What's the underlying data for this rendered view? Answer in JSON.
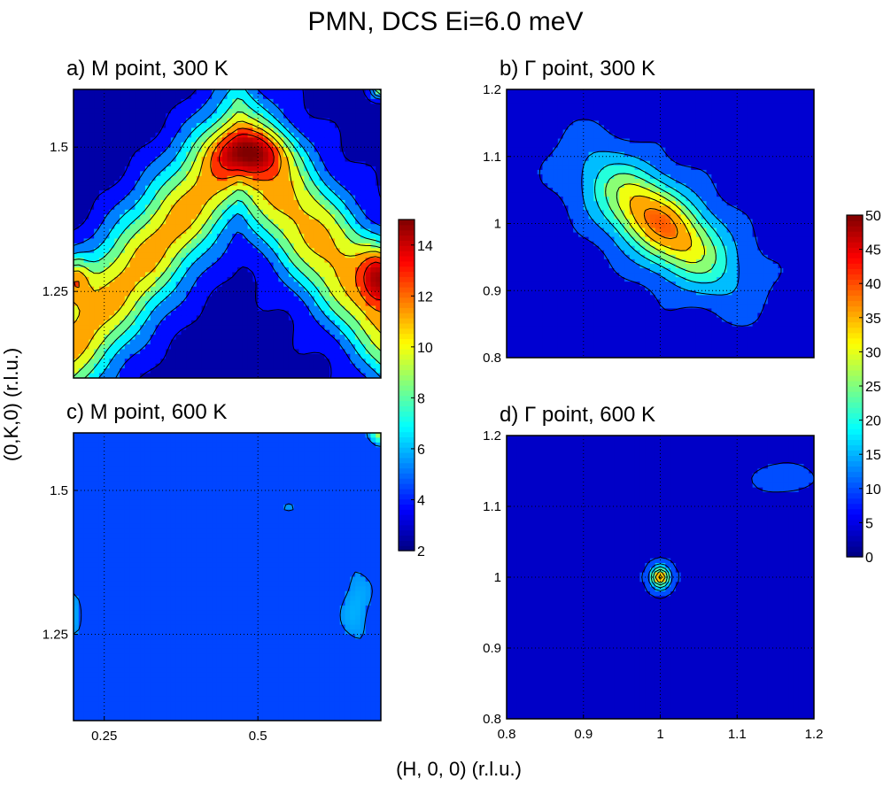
{
  "figure": {
    "title": "PMN, DCS Ei=6.0 meV",
    "xlabel": "(H, 0, 0) (r.l.u.)",
    "ylabel": "(0,K,0) (r.l.u.)"
  },
  "colors": {
    "colormap": "jet",
    "contour_line": "#000000",
    "axes": "#000000",
    "grid": "#000000"
  },
  "chart_data": [
    {
      "id": "a",
      "type": "heatmap",
      "title": "a) M point, 300 K",
      "xlim": [
        0.2,
        0.7
      ],
      "ylim": [
        1.1,
        1.6
      ],
      "xticks": [],
      "yticks": [
        1.25,
        1.5
      ],
      "grid": true,
      "colorbar": "left",
      "levels": [
        3,
        4.5,
        6,
        7.5,
        9,
        10.5,
        12,
        13.5
      ],
      "peaks": [
        {
          "x": 0.49,
          "y": 1.49,
          "value": 13.5,
          "sx": 0.06,
          "sy": 0.04
        },
        {
          "x": 0.7,
          "y": 1.28,
          "value": 14.5,
          "sx": 0.03,
          "sy": 0.05
        },
        {
          "x": 0.2,
          "y": 1.27,
          "value": 12.5,
          "sx": 0.025,
          "sy": 0.04
        },
        {
          "x": 0.7,
          "y": 1.6,
          "value": 15,
          "sx": 0.015,
          "sy": 0.015
        }
      ],
      "ridge": {
        "base": 2.5,
        "height": 8.5,
        "apex_x": 0.47,
        "apex_y": 1.5,
        "slope": 1.25,
        "width": 0.12
      }
    },
    {
      "id": "b",
      "type": "heatmap",
      "title": "b) Γ point, 300 K",
      "xlim": [
        0.8,
        1.2
      ],
      "ylim": [
        0.8,
        1.2
      ],
      "xticks": [],
      "yticks": [
        0.8,
        0.9,
        1,
        1.1,
        1.2
      ],
      "grid": true,
      "colorbar": "right",
      "levels": [
        8,
        13,
        18,
        23,
        28,
        33,
        38
      ],
      "peaks": [
        {
          "x": 1.0,
          "y": 1.0,
          "value": 40,
          "along": 0.11,
          "across": 0.05
        }
      ],
      "background": 6
    },
    {
      "id": "c",
      "type": "heatmap",
      "title": "c) M point, 600 K",
      "xlim": [
        0.2,
        0.7
      ],
      "ylim": [
        1.1,
        1.6
      ],
      "xticks": [
        0.25,
        0.5
      ],
      "yticks": [
        1.25,
        1.5
      ],
      "grid": true,
      "colorbar": "left",
      "levels": [
        3.5,
        5.5
      ],
      "peaks": [
        {
          "x": 0.7,
          "y": 1.6,
          "value": 15,
          "sx": 0.015,
          "sy": 0.015
        },
        {
          "x": 0.66,
          "y": 1.3,
          "value": 6.2,
          "sx": 0.03,
          "sy": 0.08
        },
        {
          "x": 0.2,
          "y": 1.3,
          "value": 5.8,
          "sx": 0.02,
          "sy": 0.1
        },
        {
          "x": 0.55,
          "y": 1.47,
          "value": 6.0,
          "sx": 0.015,
          "sy": 0.008
        }
      ],
      "background": 4.5
    },
    {
      "id": "d",
      "type": "heatmap",
      "title": "d) Γ point, 600 K",
      "xlim": [
        0.8,
        1.2
      ],
      "ylim": [
        0.8,
        1.2
      ],
      "xticks": [
        0.8,
        0.9,
        1,
        1.1,
        1.2
      ],
      "yticks": [
        0.8,
        0.9,
        1,
        1.1,
        1.2
      ],
      "grid": true,
      "colorbar": "right",
      "levels": [
        7,
        13,
        19,
        25,
        31,
        37
      ],
      "peaks": [
        {
          "x": 1.0,
          "y": 1.0,
          "value": 40,
          "sx": 0.012,
          "sy": 0.015
        },
        {
          "x": 1.16,
          "y": 1.14,
          "value": 12,
          "sx": 0.03,
          "sy": 0.015
        }
      ],
      "background": 6,
      "dips": [
        {
          "x": 0.83,
          "y": 1.17,
          "value": -4,
          "sx": 0.03,
          "sy": 0.02
        },
        {
          "x": 1.17,
          "y": 0.85,
          "value": -4,
          "sx": 0.05,
          "sy": 0.04
        }
      ]
    }
  ],
  "colorbars": [
    {
      "id": "left",
      "min": 2,
      "max": 15,
      "ticks": [
        2,
        4,
        6,
        8,
        10,
        12,
        14
      ]
    },
    {
      "id": "right",
      "min": 0,
      "max": 50,
      "ticks": [
        0,
        5,
        10,
        15,
        20,
        25,
        30,
        35,
        40,
        45,
        50
      ]
    }
  ]
}
